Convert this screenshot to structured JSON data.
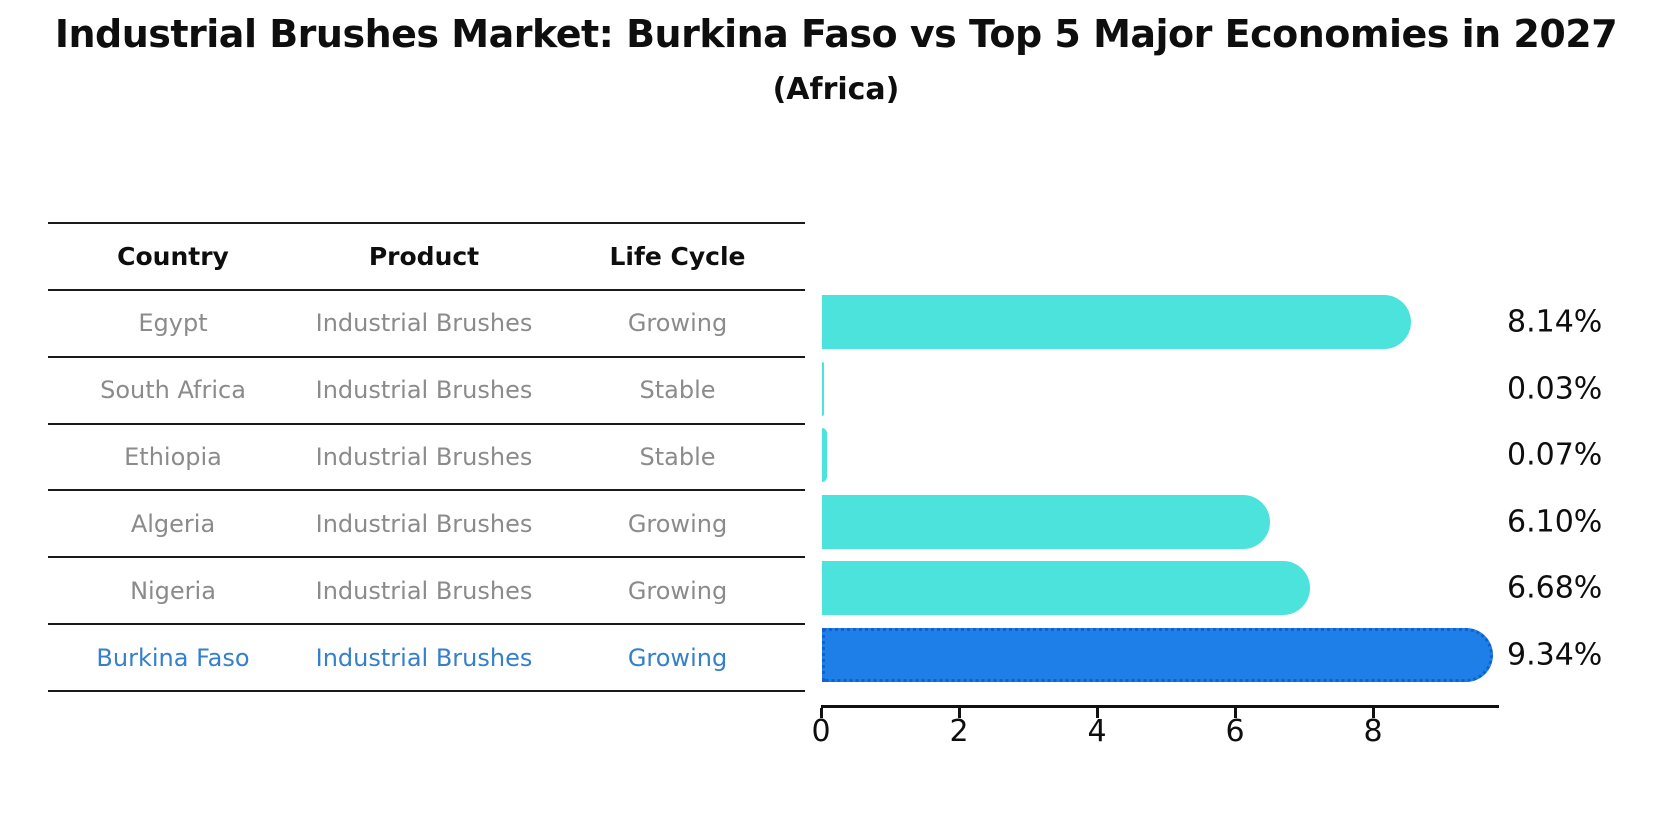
{
  "header": {
    "title": "Industrial Brushes Market: Burkina Faso vs Top 5 Major Economies in 2027",
    "subtitle": "(Africa)"
  },
  "table": {
    "columns": [
      "Country",
      "Product",
      "Life Cycle"
    ],
    "rows": [
      {
        "country": "Egypt",
        "product": "Industrial Brushes",
        "life_cycle": "Growing",
        "highlight": false
      },
      {
        "country": "South Africa",
        "product": "Industrial Brushes",
        "life_cycle": "Stable",
        "highlight": false
      },
      {
        "country": "Ethiopia",
        "product": "Industrial Brushes",
        "life_cycle": "Stable",
        "highlight": false
      },
      {
        "country": "Algeria",
        "product": "Industrial Brushes",
        "life_cycle": "Growing",
        "highlight": false
      },
      {
        "country": "Nigeria",
        "product": "Industrial Brushes",
        "life_cycle": "Growing",
        "highlight": false
      },
      {
        "country": "Burkina Faso",
        "product": "Industrial Brushes",
        "life_cycle": "Growing",
        "highlight": true
      }
    ]
  },
  "chart_data": {
    "type": "bar",
    "orientation": "horizontal",
    "title": "Industrial Brushes Market: Burkina Faso vs Top 5 Major Economies in 2027 (Africa)",
    "xlabel": "",
    "ylabel": "",
    "categories": [
      "Egypt",
      "South Africa",
      "Ethiopia",
      "Algeria",
      "Nigeria",
      "Burkina Faso"
    ],
    "values": [
      8.14,
      0.03,
      0.07,
      6.1,
      6.68,
      9.34
    ],
    "value_labels": [
      "8.14%",
      "0.03%",
      "0.07%",
      "6.10%",
      "6.68%",
      "9.34%"
    ],
    "xticks": [
      0,
      2,
      4,
      6,
      8
    ],
    "xlim": [
      0,
      9.8
    ],
    "grid": false,
    "legend": false,
    "bar_color": "#4be3db",
    "highlight_color": "#1e7fe8",
    "highlight_border_color": "#1260ce",
    "highlight_index": 5,
    "highlight_text_color": "#3580ca"
  }
}
